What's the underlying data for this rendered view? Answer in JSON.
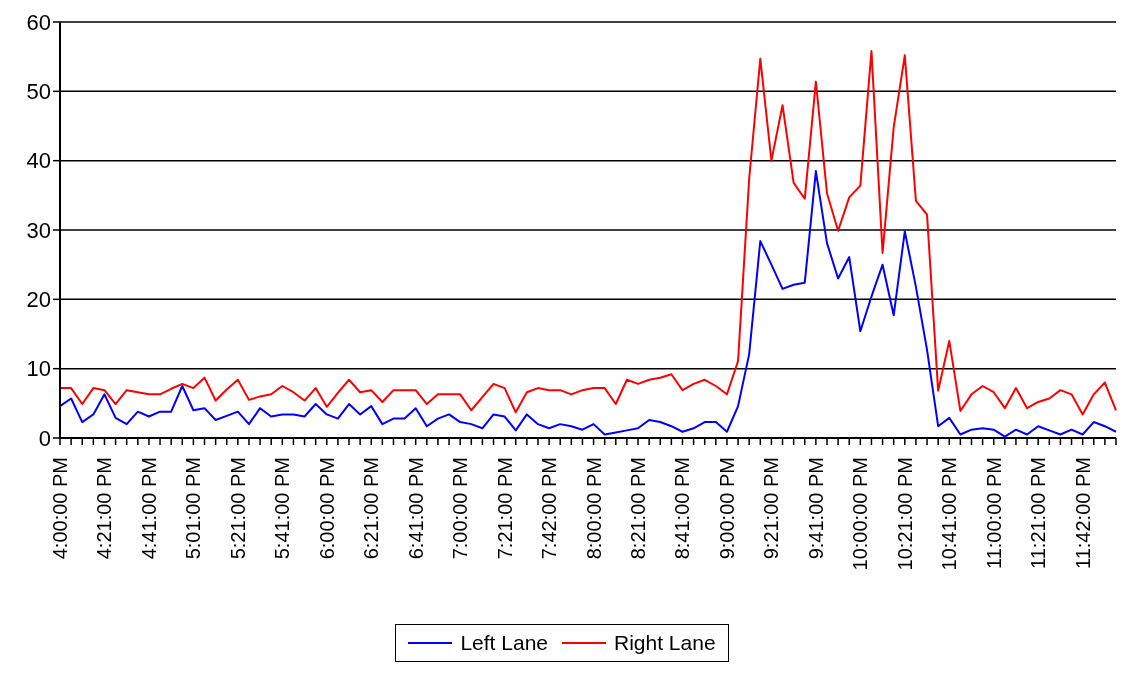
{
  "chart_data": {
    "type": "line",
    "categories": [
      "4:00:00 PM",
      null,
      null,
      null,
      "4:21:00 PM",
      null,
      null,
      null,
      "4:41:00 PM",
      null,
      null,
      null,
      "5:01:00 PM",
      null,
      null,
      null,
      "5:21:00 PM",
      null,
      null,
      null,
      "5:41:00 PM",
      null,
      null,
      null,
      "6:00:00 PM",
      null,
      null,
      null,
      "6:21:00 PM",
      null,
      null,
      null,
      "6:41:00 PM",
      null,
      null,
      null,
      "7:00:00 PM",
      null,
      null,
      null,
      "7:21:00 PM",
      null,
      null,
      null,
      "7:42:00 PM",
      null,
      null,
      null,
      "8:00:00 PM",
      null,
      null,
      null,
      "8:21:00 PM",
      null,
      null,
      null,
      "8:41:00 PM",
      null,
      null,
      null,
      "9:00:00 PM",
      null,
      null,
      null,
      "9:21:00 PM",
      null,
      null,
      null,
      "9:41:00 PM",
      null,
      null,
      null,
      "10:00:00 PM",
      null,
      null,
      null,
      "10:21:00 PM",
      null,
      null,
      null,
      "10:41:00 PM",
      null,
      null,
      null,
      "11:00:00 PM",
      null,
      null,
      null,
      "11:21:00 PM",
      null,
      null,
      null,
      "11:42:00 PM",
      null,
      null,
      null
    ],
    "series": [
      {
        "name": "Right Lane",
        "color": "#ff0000",
        "values": [
          7.2,
          7.2,
          4.9,
          7.2,
          6.9,
          4.9,
          6.9,
          6.6,
          6.3,
          6.3,
          7.1,
          7.8,
          7.2,
          8.7,
          5.4,
          7.0,
          8.4,
          5.5,
          6.0,
          6.3,
          7.5,
          6.6,
          5.4,
          7.2,
          4.5,
          6.5,
          8.4,
          6.6,
          6.9,
          5.2,
          6.9,
          6.9,
          6.9,
          4.9,
          6.3,
          6.3,
          6.3,
          4.0,
          5.9,
          7.8,
          7.2,
          3.7,
          6.6,
          7.2,
          6.9,
          6.9,
          6.3,
          6.9,
          7.2,
          7.2,
          4.9,
          8.4,
          7.8,
          8.4,
          8.7,
          9.2,
          6.9,
          7.8,
          8.4,
          7.5,
          6.3,
          11.1,
          37.4,
          54.7,
          40.0,
          48.0,
          36.8,
          34.5,
          51.4,
          35.3,
          29.9,
          34.7,
          36.4,
          55.8,
          26.7,
          44.8,
          55.2,
          34.2,
          32.2,
          6.8,
          14.0,
          3.9,
          6.3,
          7.5,
          6.6,
          4.3,
          7.2,
          4.3,
          5.2,
          5.7,
          6.9,
          6.3,
          3.4,
          6.3,
          8.0,
          4.0
        ]
      },
      {
        "name": "Left Lane",
        "color": "#0000ff",
        "values": [
          4.6,
          5.7,
          2.3,
          3.4,
          6.3,
          2.9,
          2.0,
          3.8,
          3.1,
          3.8,
          3.8,
          7.5,
          4.0,
          4.3,
          2.6,
          3.2,
          3.8,
          2.0,
          4.3,
          3.1,
          3.4,
          3.4,
          3.1,
          4.9,
          3.4,
          2.8,
          4.9,
          3.4,
          4.6,
          2.0,
          2.8,
          2.8,
          4.3,
          1.7,
          2.8,
          3.4,
          2.3,
          2.0,
          1.4,
          3.4,
          3.1,
          1.1,
          3.4,
          2.0,
          1.4,
          2.0,
          1.7,
          1.2,
          2.0,
          0.5,
          0.8,
          1.1,
          1.4,
          2.6,
          2.3,
          1.7,
          0.9,
          1.4,
          2.3,
          2.3,
          0.9,
          4.6,
          12.1,
          28.4,
          25.0,
          21.5,
          22.1,
          22.4,
          38.5,
          28.1,
          23.0,
          26.1,
          15.4,
          20.4,
          25.0,
          17.7,
          29.8,
          21.8,
          12.7,
          1.7,
          2.9,
          0.5,
          1.2,
          1.4,
          1.2,
          0.2,
          1.2,
          0.5,
          1.7,
          1.1,
          0.5,
          1.2,
          0.5,
          2.3,
          1.7,
          0.9
        ]
      }
    ],
    "ylim": [
      0,
      60
    ],
    "yticks": [
      0,
      10,
      20,
      30,
      40,
      50,
      60
    ],
    "grid": "y",
    "legend": "bottom",
    "marker": "none",
    "line_style": "solid"
  }
}
